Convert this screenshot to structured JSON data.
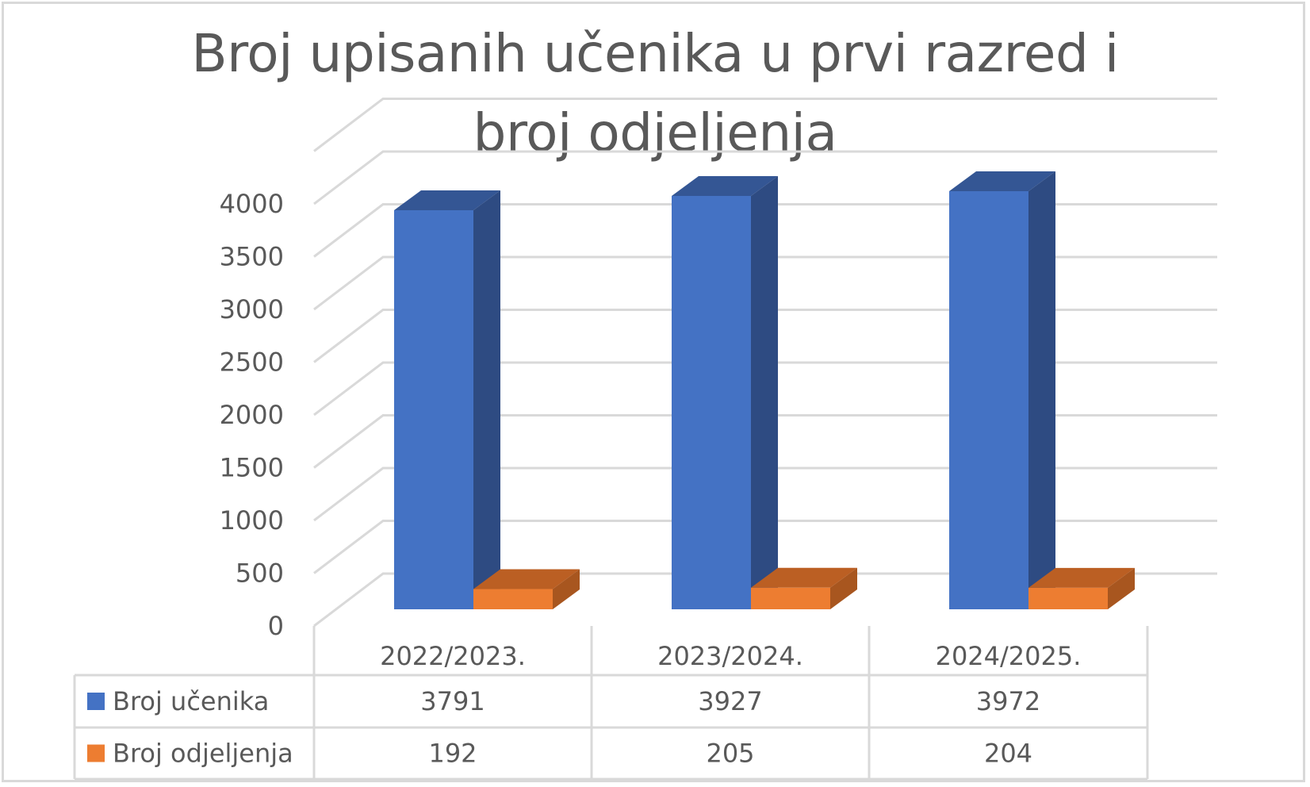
{
  "chart_data": {
    "type": "bar",
    "style": "3d-clustered-column-with-data-table",
    "title": "Broj upisanih učenika u prvi razred i broj odjeljenja",
    "title_lines": [
      "Broj upisanih učenika u prvi razred i",
      "broj odjeljenja"
    ],
    "categories": [
      "2022/2023.",
      "2023/2024.",
      "2024/2025."
    ],
    "series": [
      {
        "name": "Broj učenika",
        "values": [
          3791,
          3927,
          3972
        ],
        "color": "#4472c4",
        "side_color": "#2e4b82",
        "top_color": "#345694"
      },
      {
        "name": "Broj odjeljenja",
        "values": [
          192,
          205,
          204
        ],
        "color": "#ed7d31",
        "side_color": "#a8561f",
        "top_color": "#bb5f23"
      }
    ],
    "y_ticks": [
      0,
      500,
      1000,
      1500,
      2000,
      2500,
      3000,
      3500,
      4000
    ],
    "ylim": [
      0,
      4500
    ],
    "xlabel": "",
    "ylabel": "",
    "grid": true,
    "legend_position": "data-table-below",
    "data_table": {
      "header": [
        "2022/2023.",
        "2023/2024.",
        "2024/2025."
      ],
      "rows": [
        {
          "label": "Broj učenika",
          "values": [
            "3791",
            "3927",
            "3972"
          ]
        },
        {
          "label": "Broj odjeljenja",
          "values": [
            "192",
            "205",
            "204"
          ]
        }
      ]
    }
  },
  "colors": {
    "text": "#595959",
    "grid": "#d9d9d9",
    "border": "#d9d9d9"
  }
}
